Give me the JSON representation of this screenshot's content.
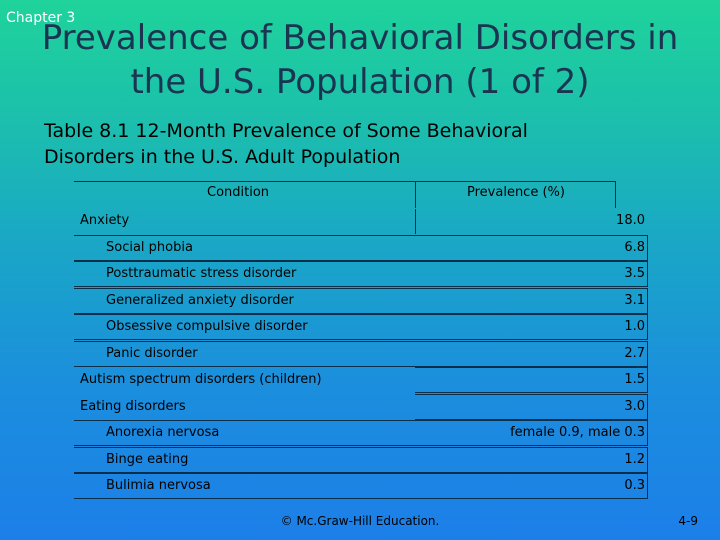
{
  "chapter_label": "Chapter 3",
  "title_line1": "Prevalence of Behavioral Disorders in",
  "title_line2": "the U.S. Population (1 of 2)",
  "caption_line1": "Table 8.1 12-Month Prevalence of Some Behavioral",
  "caption_line2": "Disorders in the U.S. Adult Population",
  "table": {
    "headers": {
      "condition": "Condition",
      "prevalence": "Prevalence (%)"
    },
    "rows": [
      {
        "condition": "Anxiety",
        "prevalence": "18.0"
      },
      {
        "condition": "Social phobia",
        "prevalence": "6.8"
      },
      {
        "condition": "Posttraumatic  stress disorder",
        "prevalence": "3.5"
      },
      {
        "condition": "Generalized anxiety disorder",
        "prevalence": "3.1"
      },
      {
        "condition": "Obsessive compulsive disorder",
        "prevalence": "1.0"
      },
      {
        "condition": "Panic disorder",
        "prevalence": "2.7"
      },
      {
        "condition": "Autism spectrum disorders (children)",
        "prevalence": "1.5"
      },
      {
        "condition": "Eating disorders",
        "prevalence": "3.0"
      },
      {
        "condition": "Anorexia nervosa",
        "prevalence": "female 0.9, male 0.3"
      },
      {
        "condition": "Binge eating",
        "prevalence": "1.2"
      },
      {
        "condition": "Bulimia nervosa",
        "prevalence": "0.3"
      }
    ]
  },
  "footer": "© Mc.Graw-Hill Education.",
  "page_number": "4-9"
}
